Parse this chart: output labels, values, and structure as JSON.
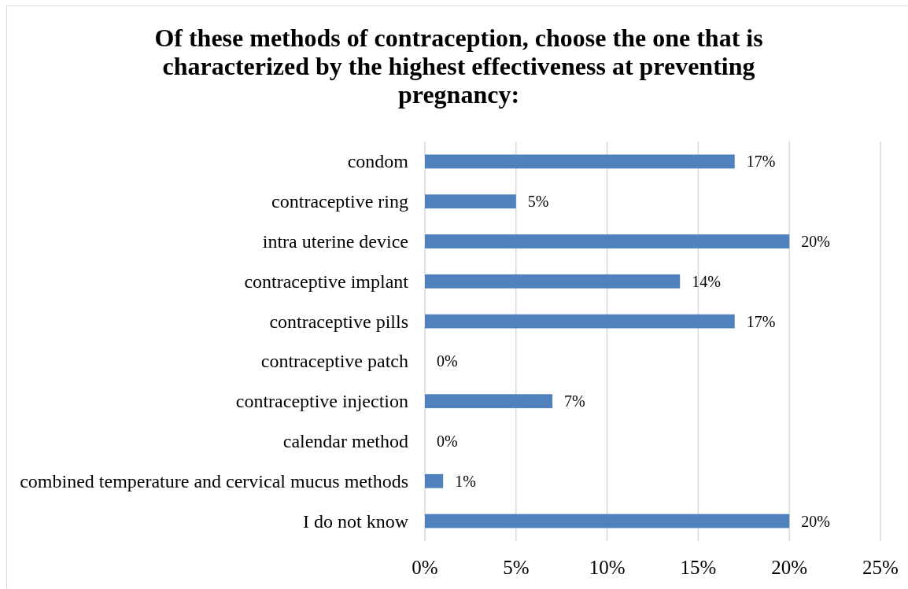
{
  "chart_data": {
    "type": "bar",
    "orientation": "horizontal",
    "title": "Of these methods of contraception, choose the one that is characterized by the highest effectiveness at preventing pregnancy:",
    "categories": [
      "condom",
      "contraceptive ring",
      "intra uterine device",
      "contraceptive implant",
      "contraceptive pills",
      "contraceptive patch",
      "contraceptive injection",
      "calendar method",
      "combined temperature and cervical mucus methods",
      "I do not know"
    ],
    "values": [
      17,
      5,
      20,
      14,
      17,
      0,
      7,
      0,
      1,
      20
    ],
    "value_labels": [
      "17%",
      "5%",
      "20%",
      "14%",
      "17%",
      "0%",
      "7%",
      "0%",
      "1%",
      "20%"
    ],
    "color": "#4f81bd",
    "xlim": [
      0,
      25
    ],
    "xticks": [
      {
        "value": 0,
        "label": "0%"
      },
      {
        "value": 5,
        "label": "5%"
      },
      {
        "value": 10,
        "label": "10%"
      },
      {
        "value": 15,
        "label": "15%"
      },
      {
        "value": 20,
        "label": "20%"
      },
      {
        "value": 25,
        "label": "25%"
      }
    ],
    "grid": "x"
  }
}
